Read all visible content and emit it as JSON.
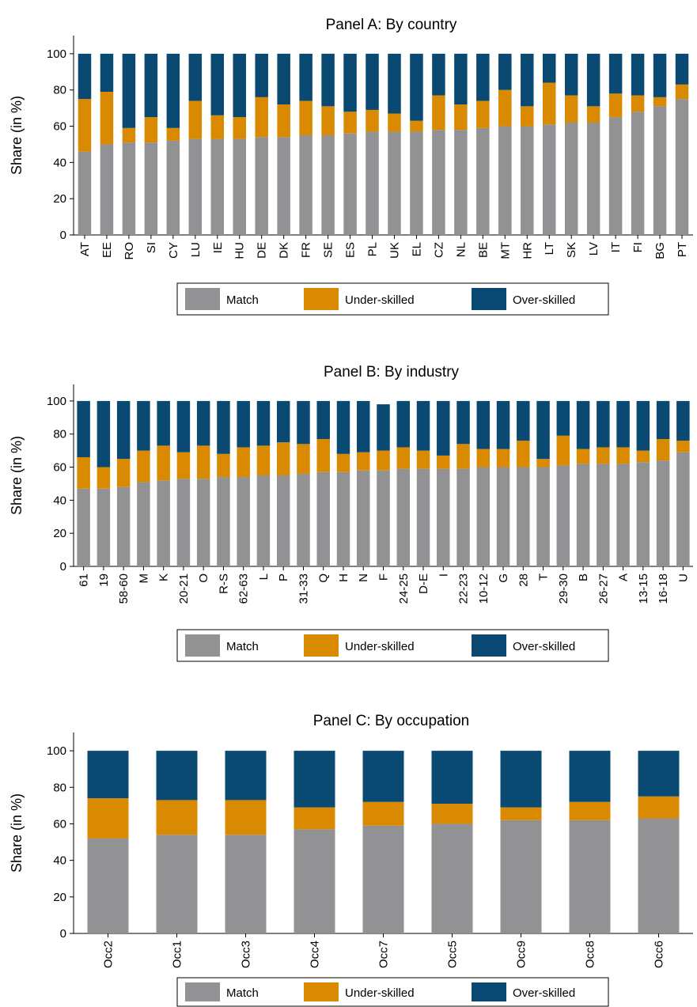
{
  "colors": {
    "match": "#929295",
    "under": "#D98A00",
    "over": "#0A4A72"
  },
  "legend": [
    "Match",
    "Under-skilled",
    "Over-skilled"
  ],
  "chart_data": [
    {
      "type": "bar",
      "stacked": true,
      "title": "Panel A: By country",
      "ylabel": "Share (in %)",
      "xlabel": "",
      "ylim": [
        0,
        110
      ],
      "yticks": [
        0,
        20,
        40,
        60,
        80,
        100
      ],
      "categories": [
        "AT",
        "EE",
        "RO",
        "SI",
        "CY",
        "LU",
        "IE",
        "HU",
        "DE",
        "DK",
        "FR",
        "SE",
        "ES",
        "PL",
        "UK",
        "EL",
        "CZ",
        "NL",
        "BE",
        "MT",
        "HR",
        "LT",
        "SK",
        "LV",
        "IT",
        "FI",
        "BG",
        "PT"
      ],
      "series": [
        {
          "name": "Match",
          "values": [
            46,
            50,
            51,
            51,
            52,
            53,
            53,
            53,
            54,
            54,
            55,
            55,
            56,
            57,
            57,
            57,
            58,
            58,
            59,
            60,
            60,
            61,
            62,
            62,
            65,
            68,
            71,
            75
          ]
        },
        {
          "name": "Under-skilled",
          "values": [
            29,
            29,
            8,
            14,
            7,
            21,
            13,
            12,
            22,
            18,
            19,
            16,
            12,
            12,
            10,
            6,
            19,
            14,
            15,
            20,
            11,
            23,
            15,
            9,
            13,
            9,
            5,
            8
          ]
        },
        {
          "name": "Over-skilled",
          "values": [
            25,
            21,
            41,
            35,
            41,
            26,
            34,
            35,
            24,
            28,
            26,
            29,
            32,
            31,
            33,
            37,
            23,
            28,
            26,
            20,
            29,
            16,
            23,
            29,
            22,
            23,
            24,
            17
          ]
        }
      ]
    },
    {
      "type": "bar",
      "stacked": true,
      "title": "Panel B: By industry",
      "ylabel": "Share (in %)",
      "xlabel": "",
      "ylim": [
        0,
        110
      ],
      "yticks": [
        0,
        20,
        40,
        60,
        80,
        100
      ],
      "categories": [
        "61",
        "19",
        "58-60",
        "M",
        "K",
        "20-21",
        "O",
        "R-S",
        "62-63",
        "L",
        "P",
        "31-33",
        "Q",
        "H",
        "N",
        "F",
        "24-25",
        "D-E",
        "I",
        "22-23",
        "10-12",
        "G",
        "28",
        "T",
        "29-30",
        "B",
        "26-27",
        "A",
        "13-15",
        "16-18",
        "U"
      ],
      "series": [
        {
          "name": "Match",
          "values": [
            47,
            47,
            48,
            51,
            52,
            53,
            53,
            54,
            54,
            55,
            55,
            56,
            57,
            57,
            58,
            58,
            59,
            59,
            59,
            59,
            60,
            60,
            60,
            60,
            61,
            62,
            62,
            62,
            63,
            64,
            69
          ]
        },
        {
          "name": "Under-skilled",
          "values": [
            19,
            13,
            17,
            19,
            21,
            16,
            20,
            14,
            18,
            18,
            20,
            18,
            20,
            11,
            11,
            12,
            13,
            11,
            8,
            15,
            11,
            11,
            16,
            5,
            18,
            9,
            10,
            10,
            7,
            13,
            7
          ]
        },
        {
          "name": "Over-skilled",
          "values": [
            34,
            40,
            35,
            30,
            27,
            31,
            27,
            32,
            28,
            27,
            25,
            26,
            23,
            32,
            31,
            28,
            28,
            30,
            33,
            26,
            29,
            29,
            24,
            35,
            21,
            29,
            28,
            28,
            30,
            23,
            24
          ]
        }
      ]
    },
    {
      "type": "bar",
      "stacked": true,
      "title": "Panel C: By occupation",
      "ylabel": "Share (in %)",
      "xlabel": "",
      "ylim": [
        0,
        110
      ],
      "yticks": [
        0,
        20,
        40,
        60,
        80,
        100
      ],
      "categories": [
        "Occ2",
        "Occ1",
        "Occ3",
        "Occ4",
        "Occ7",
        "Occ5",
        "Occ9",
        "Occ8",
        "Occ6"
      ],
      "series": [
        {
          "name": "Match",
          "values": [
            52,
            54,
            54,
            57,
            59,
            60,
            62,
            62,
            63
          ]
        },
        {
          "name": "Under-skilled",
          "values": [
            22,
            19,
            19,
            12,
            13,
            11,
            7,
            10,
            12
          ]
        },
        {
          "name": "Over-skilled",
          "values": [
            26,
            27,
            27,
            31,
            28,
            29,
            31,
            28,
            25
          ]
        }
      ]
    }
  ]
}
